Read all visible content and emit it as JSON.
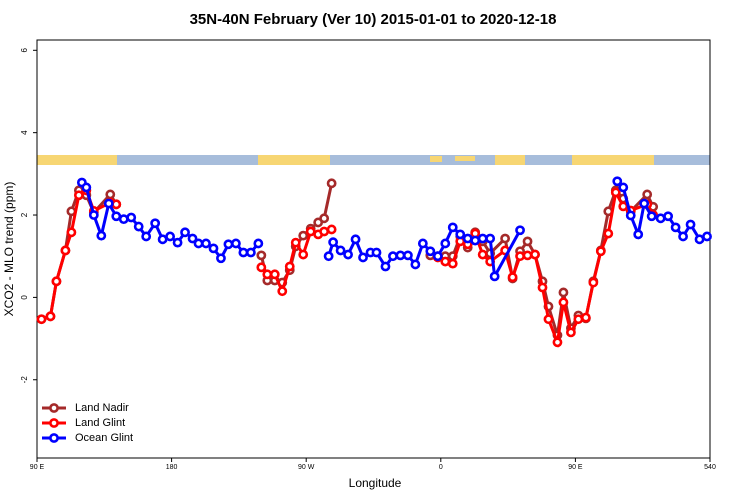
{
  "chart_data": {
    "type": "line",
    "title": "35N-40N February (Ver 10)   2015-01-01 to 2020-12-18",
    "xlabel": "Longitude",
    "ylabel": "XCO2 - MLO trend (ppm)",
    "xlim": [
      90,
      540
    ],
    "ylim": [
      -3.9,
      6.25
    ],
    "xticks": [
      {
        "value": 90,
        "label": "90 E"
      },
      180,
      {
        "value": 270,
        "label": "90 W"
      },
      {
        "value": 360,
        "label": "0"
      },
      {
        "value": 450,
        "label": "90 E"
      },
      540
    ],
    "yticks": [
      -2,
      0,
      2,
      4,
      6
    ],
    "legend": "bottom-left",
    "series": [
      {
        "name": "Land Nadir",
        "color": "#a52a2a",
        "x": [
          93,
          99,
          103,
          109,
          113,
          118,
          123,
          128,
          139,
          143,
          190,
          240,
          244,
          249,
          254,
          259,
          263,
          268,
          273,
          278,
          282,
          287,
          320,
          353,
          358,
          363,
          368,
          373,
          378,
          383,
          388,
          393,
          403,
          408,
          413,
          418,
          423,
          428,
          432,
          438,
          442,
          447,
          452,
          457,
          462,
          467,
          472,
          477,
          482,
          487,
          498,
          502
        ],
        "values": [
          -0.53,
          -0.46,
          0.39,
          1.14,
          2.09,
          2.6,
          2.48,
          2.06,
          2.5,
          2.26,
          null,
          1.02,
          0.41,
          0.41,
          0.36,
          0.66,
          1.24,
          1.5,
          1.67,
          1.82,
          1.92,
          2.77,
          null,
          1.02,
          1.0,
          1.0,
          1.0,
          1.48,
          1.21,
          1.58,
          1.36,
          1.07,
          1.43,
          0.46,
          1.12,
          1.36,
          1.04,
          0.39,
          -0.22,
          -0.92,
          0.12,
          -0.75,
          -0.44,
          -0.51,
          0.39,
          1.14,
          2.09,
          2.6,
          2.4,
          2.09,
          2.5,
          2.2
        ]
      },
      {
        "name": "Land Glint",
        "color": "#ff0000",
        "x": [
          93,
          99,
          103,
          109,
          113,
          118,
          123,
          128,
          139,
          143,
          190,
          240,
          244,
          249,
          254,
          259,
          263,
          268,
          273,
          278,
          282,
          287,
          320,
          358,
          363,
          368,
          373,
          378,
          383,
          388,
          393,
          403,
          408,
          413,
          418,
          423,
          428,
          432,
          438,
          442,
          447,
          452,
          457,
          462,
          467,
          472,
          477,
          482,
          487,
          498,
          502
        ],
        "values": [
          -0.53,
          -0.46,
          0.39,
          1.14,
          1.58,
          2.48,
          2.6,
          2.1,
          2.3,
          2.26,
          null,
          0.73,
          0.56,
          0.56,
          0.15,
          0.75,
          1.33,
          1.04,
          1.6,
          1.53,
          1.6,
          1.65,
          null,
          0.97,
          0.87,
          0.82,
          1.36,
          1.29,
          1.55,
          1.04,
          0.87,
          1.14,
          0.49,
          1.0,
          1.02,
          1.04,
          0.24,
          -0.53,
          -1.09,
          -0.12,
          -0.85,
          -0.53,
          -0.49,
          0.36,
          1.12,
          1.55,
          2.55,
          2.21,
          2.11,
          2.26,
          2.0
        ]
      },
      {
        "name": "Ocean Glint",
        "color": "#0000ff",
        "x": [
          120,
          123,
          128,
          133,
          138,
          143,
          148,
          153,
          158,
          163,
          169,
          174,
          179,
          184,
          189,
          194,
          198,
          203,
          208,
          213,
          218,
          223,
          228,
          233,
          238,
          260,
          285,
          288,
          293,
          298,
          303,
          308,
          313,
          317,
          323,
          328,
          333,
          338,
          343,
          348,
          353,
          358,
          363,
          368,
          373,
          378,
          383,
          388,
          393,
          396,
          413,
          450,
          478,
          482,
          487,
          492,
          496,
          501,
          507,
          512,
          517,
          522,
          527,
          533,
          538
        ],
        "values": [
          2.79,
          2.67,
          2.0,
          1.5,
          2.28,
          1.97,
          1.9,
          1.94,
          1.72,
          1.48,
          1.8,
          1.41,
          1.48,
          1.33,
          1.58,
          1.43,
          1.31,
          1.31,
          1.19,
          0.95,
          1.29,
          1.31,
          1.09,
          1.09,
          1.31,
          null,
          1.0,
          1.34,
          1.14,
          1.04,
          1.41,
          0.97,
          1.09,
          1.09,
          0.75,
          1.0,
          1.02,
          1.02,
          0.8,
          1.31,
          1.12,
          1.0,
          1.31,
          1.7,
          1.53,
          1.43,
          1.38,
          1.43,
          1.43,
          0.51,
          1.63,
          null,
          2.82,
          2.67,
          1.99,
          1.53,
          2.28,
          1.97,
          1.92,
          1.97,
          1.7,
          1.48,
          1.77,
          1.41,
          1.48
        ]
      }
    ]
  }
}
